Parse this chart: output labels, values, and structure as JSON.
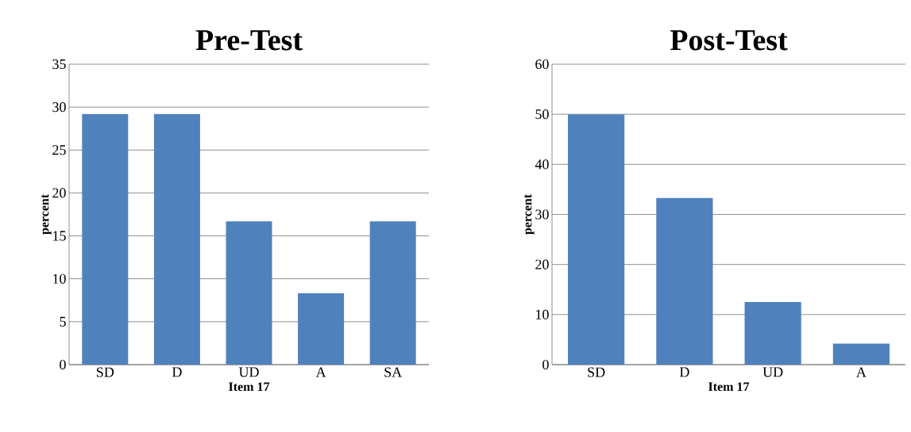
{
  "chart_data": [
    {
      "type": "bar",
      "title": "Pre-Test",
      "xlabel": "Item 17",
      "ylabel": "percent",
      "categories": [
        "SD",
        "D",
        "UD",
        "A",
        "SA"
      ],
      "values": [
        29.2,
        29.2,
        16.7,
        8.3,
        16.7
      ],
      "color": "#4f81bd",
      "ylim": [
        0,
        35
      ],
      "yticks": [
        0,
        5,
        10,
        15,
        20,
        25,
        30,
        35
      ],
      "grid": "y"
    },
    {
      "type": "bar",
      "title": "Post-Test",
      "xlabel": "Item 17",
      "ylabel": "percent",
      "categories": [
        "SD",
        "D",
        "UD",
        "A"
      ],
      "values": [
        50,
        33.3,
        12.5,
        4.2
      ],
      "color": "#4f81bd",
      "ylim": [
        0,
        60
      ],
      "yticks": [
        0,
        10,
        20,
        30,
        40,
        50,
        60
      ],
      "grid": "y"
    }
  ]
}
